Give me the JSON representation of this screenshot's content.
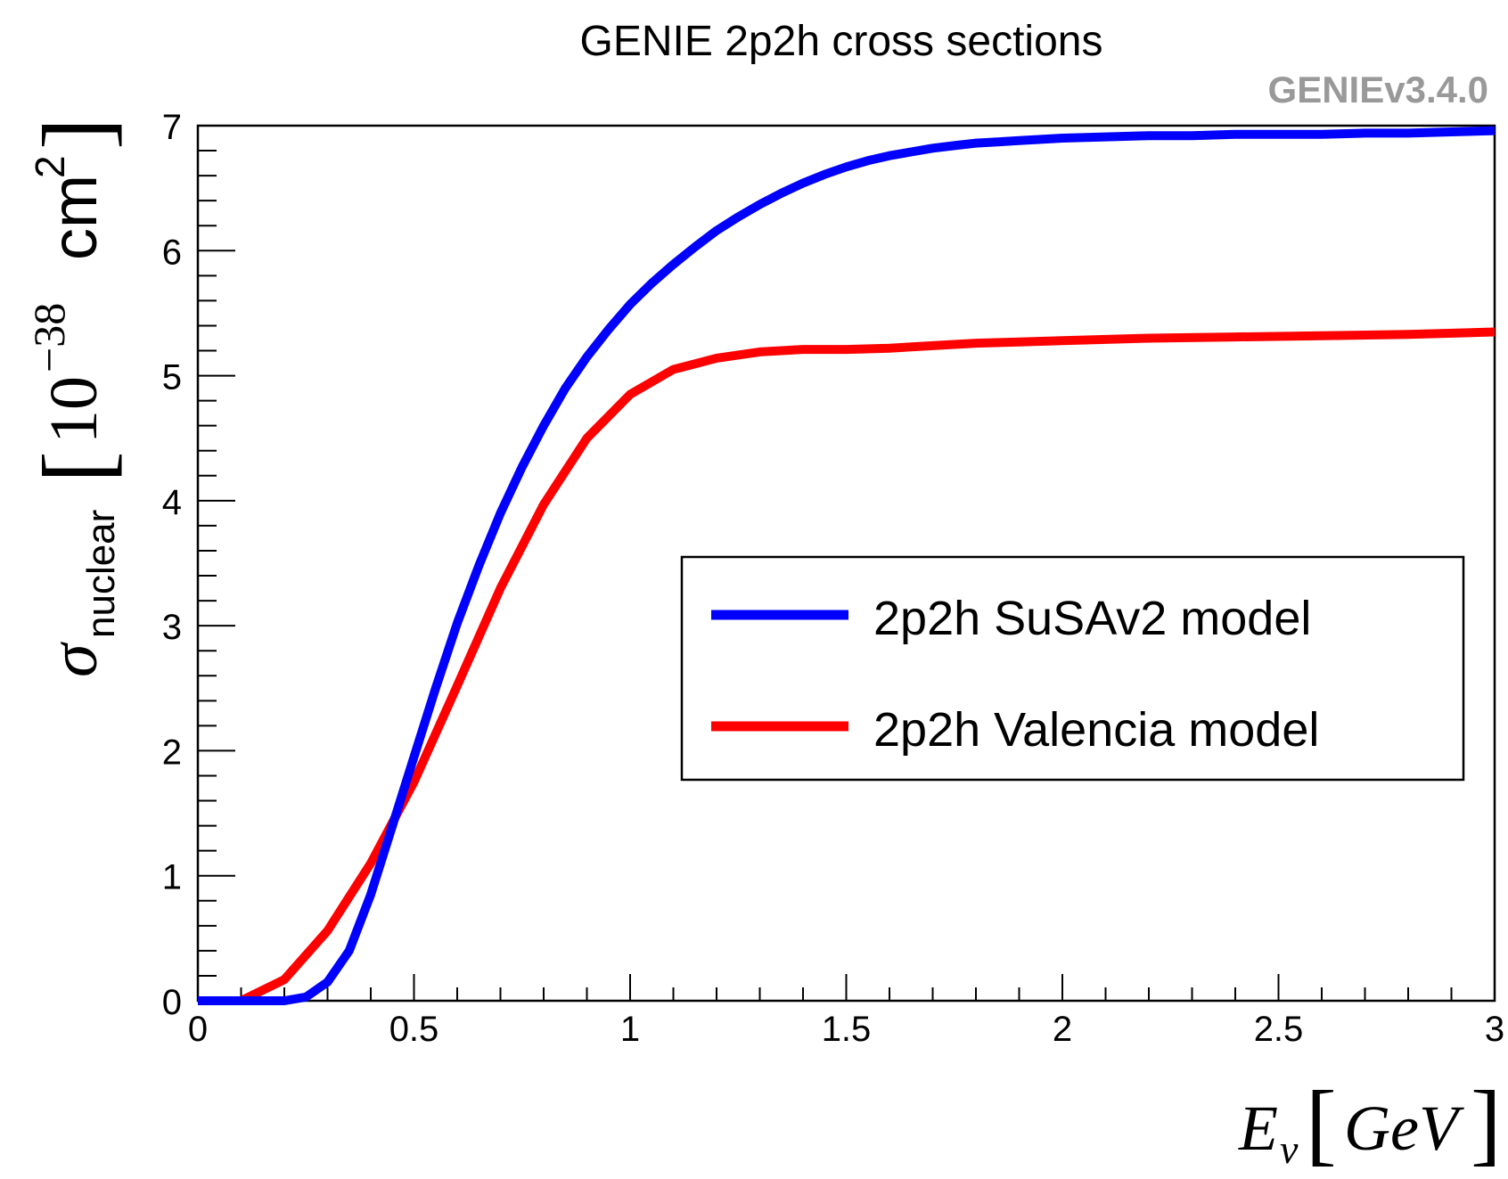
{
  "chart_data": {
    "type": "line",
    "title": "GENIE 2p2h cross sections",
    "version_label": "GENIEv3.4.0",
    "xlabel": {
      "main": "E",
      "sub": "ν",
      "unit": "GeV"
    },
    "ylabel": {
      "main": "σ",
      "sub": "nuclear",
      "unit_base": "10",
      "unit_exp": "−38",
      "unit_rest": "cm",
      "unit_rest_exp": "2"
    },
    "xlim": [
      0,
      3
    ],
    "ylim": [
      0,
      7
    ],
    "x_ticks": [
      0,
      0.5,
      1,
      1.5,
      2,
      2.5,
      3
    ],
    "x_tick_labels": [
      "0",
      "0.5",
      "1",
      "1.5",
      "2",
      "2.5",
      "3"
    ],
    "y_ticks": [
      0,
      1,
      2,
      3,
      4,
      5,
      6,
      7
    ],
    "y_tick_labels": [
      "0",
      "1",
      "2",
      "3",
      "4",
      "5",
      "6",
      "7"
    ],
    "legend_position": "center-right",
    "series": [
      {
        "name": "2p2h SuSAv2 model",
        "color": "#0000ff",
        "x": [
          0.0,
          0.1,
          0.15,
          0.2,
          0.25,
          0.3,
          0.35,
          0.4,
          0.45,
          0.5,
          0.55,
          0.6,
          0.65,
          0.7,
          0.75,
          0.8,
          0.85,
          0.9,
          0.95,
          1.0,
          1.05,
          1.1,
          1.15,
          1.2,
          1.25,
          1.3,
          1.35,
          1.4,
          1.45,
          1.5,
          1.55,
          1.6,
          1.65,
          1.7,
          1.75,
          1.8,
          1.85,
          1.9,
          1.95,
          2.0,
          2.1,
          2.2,
          2.3,
          2.4,
          2.5,
          2.6,
          2.7,
          2.8,
          2.9,
          3.0
        ],
        "y": [
          0.0,
          0.0,
          0.0,
          0.0,
          0.03,
          0.15,
          0.4,
          0.85,
          1.4,
          1.95,
          2.5,
          3.02,
          3.48,
          3.9,
          4.27,
          4.6,
          4.9,
          5.15,
          5.37,
          5.57,
          5.74,
          5.89,
          6.03,
          6.16,
          6.27,
          6.37,
          6.46,
          6.54,
          6.61,
          6.67,
          6.72,
          6.76,
          6.79,
          6.82,
          6.84,
          6.86,
          6.87,
          6.88,
          6.89,
          6.9,
          6.91,
          6.92,
          6.92,
          6.93,
          6.93,
          6.93,
          6.94,
          6.94,
          6.95,
          6.96
        ]
      },
      {
        "name": "2p2h Valencia model",
        "color": "#ff0000",
        "x": [
          0.0,
          0.1,
          0.2,
          0.3,
          0.4,
          0.5,
          0.6,
          0.7,
          0.8,
          0.9,
          1.0,
          1.1,
          1.2,
          1.3,
          1.4,
          1.5,
          1.6,
          1.7,
          1.8,
          1.9,
          2.0,
          2.2,
          2.4,
          2.6,
          2.8,
          3.0
        ],
        "y": [
          0.0,
          0.0,
          0.17,
          0.56,
          1.1,
          1.75,
          2.52,
          3.3,
          3.97,
          4.5,
          4.85,
          5.05,
          5.14,
          5.19,
          5.21,
          5.21,
          5.22,
          5.24,
          5.26,
          5.27,
          5.28,
          5.3,
          5.31,
          5.32,
          5.33,
          5.35
        ]
      }
    ]
  }
}
